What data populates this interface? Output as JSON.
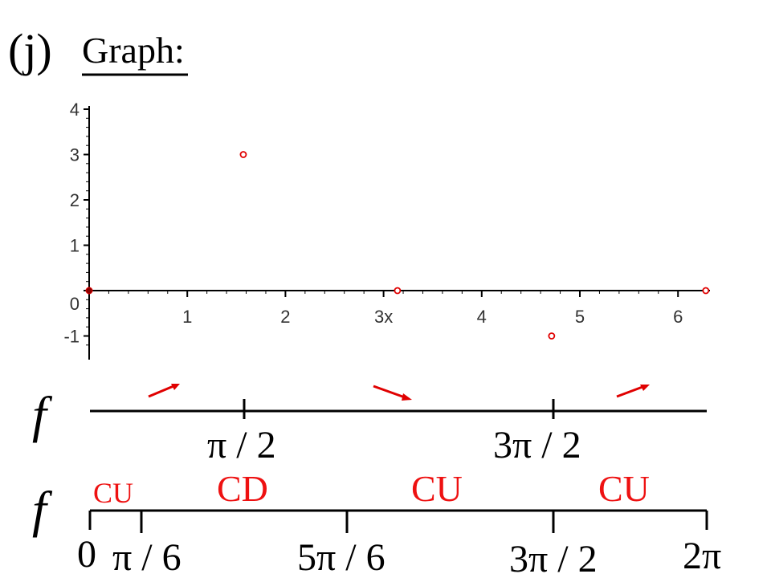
{
  "heading": {
    "part_label": "(j)",
    "title": "Graph:"
  },
  "colors": {
    "axis": "#000000",
    "points": "#e00000",
    "arrows": "#e00000",
    "concavity_text": "#ee1111"
  },
  "chart_data": {
    "type": "scatter",
    "xlim": [
      0,
      6.4
    ],
    "ylim": [
      -1.2,
      4.1
    ],
    "x_ticks": [
      "1",
      "2",
      "3x",
      "4",
      "5",
      "6"
    ],
    "y_ticks": [
      "4",
      "3",
      "2",
      "1",
      "0",
      "-1"
    ],
    "x_tick_values": [
      1,
      2,
      3,
      4,
      5,
      6
    ],
    "y_tick_values": [
      4,
      3,
      2,
      1,
      0,
      -1
    ],
    "grid": false,
    "points_filled": [
      {
        "x": 0,
        "y": 0
      }
    ],
    "points_open": [
      {
        "x": 1.5708,
        "y": 3
      },
      {
        "x": 3.1416,
        "y": 0
      },
      {
        "x": 4.7124,
        "y": -1
      },
      {
        "x": 6.2832,
        "y": 0
      }
    ]
  },
  "sign_chart_first": {
    "function_label": "f",
    "marks": [
      "π / 2",
      "3π / 2"
    ],
    "arrows": [
      "up",
      "down",
      "up"
    ]
  },
  "sign_chart_second": {
    "function_label": "f",
    "marks": [
      "0",
      "π / 6",
      "5π / 6",
      "3π / 2",
      "2π"
    ],
    "intervals": [
      "CU",
      "CD",
      "CU",
      "CU"
    ]
  }
}
